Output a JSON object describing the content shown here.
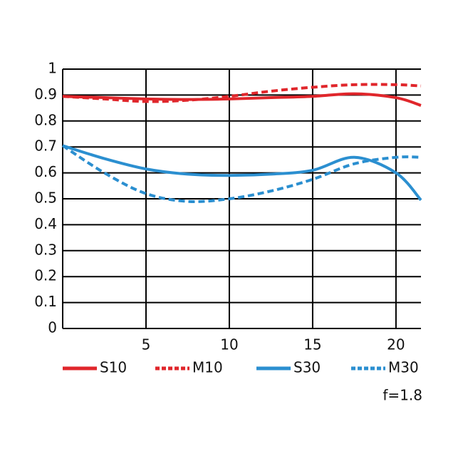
{
  "chart_data": {
    "type": "line",
    "x": [
      0,
      2.5,
      5,
      7.5,
      10,
      12.5,
      15,
      17.5,
      20,
      21.5
    ],
    "series": [
      {
        "name": "S10",
        "color": "#e0262b",
        "linestyle": "solid",
        "values": [
          0.895,
          0.89,
          0.885,
          0.883,
          0.885,
          0.89,
          0.895,
          0.905,
          0.89,
          0.86
        ]
      },
      {
        "name": "M10",
        "color": "#e0262b",
        "linestyle": "dashed",
        "values": [
          0.895,
          0.885,
          0.875,
          0.88,
          0.895,
          0.915,
          0.93,
          0.94,
          0.94,
          0.935
        ]
      },
      {
        "name": "S30",
        "color": "#2b8fd0",
        "linestyle": "solid",
        "values": [
          0.705,
          0.655,
          0.615,
          0.595,
          0.59,
          0.595,
          0.61,
          0.66,
          0.6,
          0.495
        ]
      },
      {
        "name": "M30",
        "color": "#2b8fd0",
        "linestyle": "dashed",
        "values": [
          0.705,
          0.6,
          0.52,
          0.49,
          0.5,
          0.53,
          0.575,
          0.635,
          0.66,
          0.66
        ]
      }
    ],
    "xlim": [
      0,
      21.5
    ],
    "xticks": [
      5,
      10,
      15,
      20
    ],
    "ylim": [
      0,
      1
    ],
    "yticks": [
      0,
      0.1,
      0.2,
      0.3,
      0.4,
      0.5,
      0.6,
      0.7,
      0.8,
      0.9,
      1
    ],
    "grid": true,
    "legend": "bottom",
    "annotation": "f=1.8"
  }
}
